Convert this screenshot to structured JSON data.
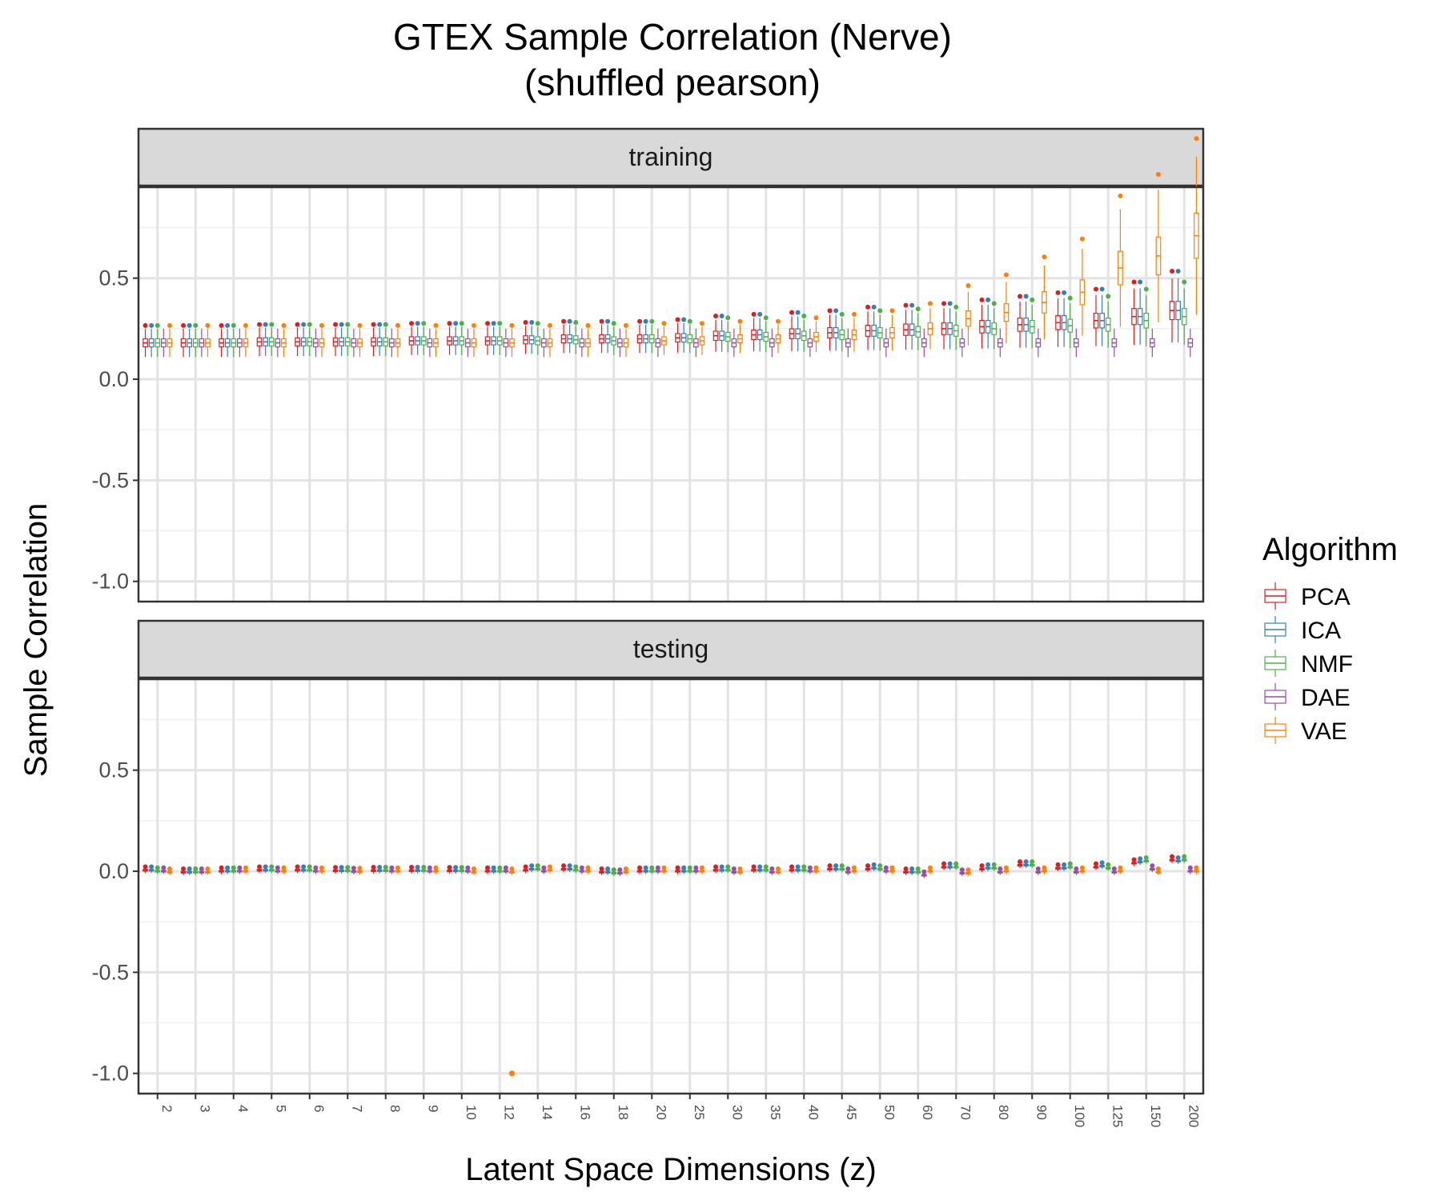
{
  "chart_data": {
    "type": "box",
    "title": "GTEX Sample Correlation (Nerve)",
    "subtitle": "(shuffled pearson)",
    "xlabel": "Latent Space Dimensions (z)",
    "ylabel": "Sample Correlation",
    "ylim": [
      -1.1,
      0.95
    ],
    "yticks": [
      -1.0,
      -0.5,
      0.0,
      0.5
    ],
    "ytick_labels": [
      "-1.0",
      "-0.5",
      "0.0",
      "0.5"
    ],
    "categories": [
      "2",
      "3",
      "4",
      "5",
      "6",
      "7",
      "8",
      "9",
      "10",
      "12",
      "14",
      "16",
      "18",
      "20",
      "25",
      "30",
      "35",
      "40",
      "45",
      "50",
      "60",
      "70",
      "80",
      "90",
      "100",
      "125",
      "150",
      "200"
    ],
    "legend": {
      "title": "Algorithm",
      "position": "right",
      "entries": [
        {
          "name": "PCA",
          "color": "#e41a1c"
        },
        {
          "name": "ICA",
          "color": "#377eb8"
        },
        {
          "name": "NMF",
          "color": "#4daf4a"
        },
        {
          "name": "DAE",
          "color": "#984ea3"
        },
        {
          "name": "VAE",
          "color": "#ff7f00"
        }
      ]
    },
    "panels": [
      {
        "label": "training",
        "series": [
          {
            "name": "PCA",
            "median": [
              0.18,
              0.18,
              0.18,
              0.185,
              0.185,
              0.185,
              0.185,
              0.19,
              0.19,
              0.19,
              0.195,
              0.2,
              0.2,
              0.2,
              0.205,
              0.215,
              0.22,
              0.225,
              0.23,
              0.24,
              0.245,
              0.25,
              0.26,
              0.27,
              0.28,
              0.29,
              0.31,
              0.34
            ]
          },
          {
            "name": "ICA",
            "median": [
              0.18,
              0.18,
              0.18,
              0.185,
              0.185,
              0.185,
              0.185,
              0.19,
              0.19,
              0.19,
              0.195,
              0.2,
              0.2,
              0.2,
              0.205,
              0.215,
              0.22,
              0.225,
              0.23,
              0.24,
              0.245,
              0.25,
              0.26,
              0.27,
              0.28,
              0.29,
              0.31,
              0.34
            ]
          },
          {
            "name": "NMF",
            "median": [
              0.18,
              0.18,
              0.18,
              0.185,
              0.185,
              0.185,
              0.185,
              0.19,
              0.19,
              0.19,
              0.19,
              0.195,
              0.19,
              0.2,
              0.2,
              0.21,
              0.21,
              0.215,
              0.22,
              0.23,
              0.235,
              0.24,
              0.25,
              0.26,
              0.265,
              0.27,
              0.29,
              0.31
            ]
          },
          {
            "name": "DAE",
            "median": [
              0.18,
              0.18,
              0.18,
              0.18,
              0.18,
              0.18,
              0.18,
              0.18,
              0.18,
              0.18,
              0.18,
              0.18,
              0.18,
              0.18,
              0.18,
              0.18,
              0.18,
              0.18,
              0.18,
              0.18,
              0.18,
              0.18,
              0.18,
              0.18,
              0.18,
              0.18,
              0.18,
              0.18
            ]
          },
          {
            "name": "VAE",
            "median": [
              0.18,
              0.18,
              0.18,
              0.18,
              0.18,
              0.18,
              0.18,
              0.18,
              0.18,
              0.18,
              0.18,
              0.18,
              0.18,
              0.19,
              0.19,
              0.2,
              0.2,
              0.21,
              0.22,
              0.23,
              0.25,
              0.3,
              0.33,
              0.38,
              0.43,
              0.55,
              0.61,
              0.71
            ]
          }
        ]
      },
      {
        "label": "testing",
        "series": [
          {
            "name": "PCA",
            "median": [
              0.005,
              -0.005,
              0,
              0.005,
              0.005,
              0.002,
              0.003,
              0.003,
              0.002,
              0,
              0.005,
              0.01,
              -0.005,
              0,
              0,
              0.005,
              0.005,
              0.005,
              0.01,
              0.01,
              -0.005,
              0.02,
              0.01,
              0.03,
              0.015,
              0.02,
              0.04,
              0.055
            ]
          },
          {
            "name": "ICA",
            "median": [
              0.005,
              -0.005,
              0,
              0.005,
              0.005,
              0.002,
              0.003,
              0.003,
              0.002,
              0,
              0.01,
              0.01,
              -0.005,
              0,
              0,
              0.005,
              0.005,
              0.005,
              0.01,
              0.015,
              -0.005,
              0.02,
              0.015,
              0.03,
              0.015,
              0.025,
              0.045,
              0.05
            ]
          },
          {
            "name": "NMF",
            "median": [
              0,
              -0.005,
              0,
              0.005,
              0.005,
              0.002,
              0.003,
              0.003,
              0.002,
              0,
              0.01,
              0.005,
              -0.01,
              0,
              0,
              0.005,
              0.005,
              0.005,
              0.01,
              0.01,
              -0.005,
              0.02,
              0.015,
              0.03,
              0.02,
              0.015,
              0.05,
              0.055
            ]
          },
          {
            "name": "DAE",
            "median": [
              0,
              -0.005,
              0,
              0,
              0,
              -0.002,
              0,
              0,
              0,
              0,
              0,
              0,
              -0.01,
              0,
              0,
              -0.005,
              -0.005,
              0,
              -0.005,
              0,
              -0.02,
              -0.01,
              -0.005,
              -0.005,
              -0.005,
              -0.005,
              0.01,
              0
            ]
          },
          {
            "name": "VAE",
            "median": [
              -0.005,
              -0.005,
              0,
              0,
              0,
              -0.002,
              0,
              0,
              -0.005,
              -0.005,
              0.005,
              0,
              -0.005,
              0,
              0,
              -0.005,
              -0.005,
              0,
              0,
              0,
              0,
              -0.01,
              0,
              0,
              0,
              0,
              -0.005,
              0
            ]
          }
        ]
      }
    ]
  }
}
